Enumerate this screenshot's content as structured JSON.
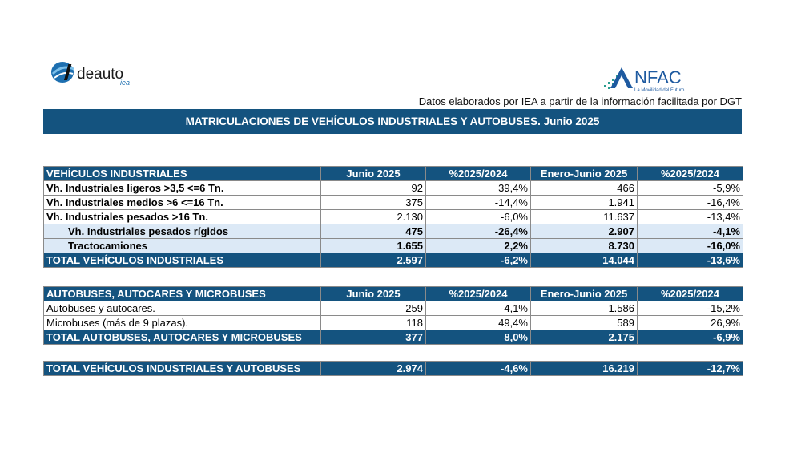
{
  "logos": {
    "left_text": "deauto",
    "left_sub": "iea",
    "right_text": "NFAC",
    "right_sub": "La Movilidad del Futuro"
  },
  "source": "Datos elaborados por IEA a partir de la información facilitada por DGT",
  "title": "MATRICULACIONES DE VEHÍCULOS INDUSTRIALES Y AUTOBUSES.  Junio 2025",
  "industriales": {
    "header": [
      "VEHÍCULOS INDUSTRIALES",
      "Junio 2025",
      "%2025/2024",
      "Enero-Junio 2025",
      "%2025/2024"
    ],
    "rows": [
      [
        "Vh. Industriales ligeros >3,5 <=6 Tn.",
        "92",
        "39,4%",
        "466",
        "-5,9%"
      ],
      [
        "Vh. Industriales medios >6  <=16 Tn.",
        "375",
        "-14,4%",
        "1.941",
        "-16,4%"
      ],
      [
        "Vh. Industriales  pesados >16 Tn.",
        "2.130",
        "-6,0%",
        "11.637",
        "-13,4%"
      ],
      [
        "Vh. Industriales pesados rígidos",
        "475",
        "-26,4%",
        "2.907",
        "-4,1%"
      ],
      [
        "Tractocamiones",
        "1.655",
        "2,2%",
        "8.730",
        "-16,0%"
      ]
    ],
    "total": [
      "TOTAL VEHÍCULOS INDUSTRIALES",
      "2.597",
      "-6,2%",
      "14.044",
      "-13,6%"
    ]
  },
  "autobuses": {
    "header": [
      "AUTOBUSES, AUTOCARES Y MICROBUSES",
      "Junio 2025",
      "%2025/2024",
      "Enero-Junio 2025",
      "%2025/2024"
    ],
    "rows": [
      [
        "Autobuses y autocares.",
        "259",
        "-4,1%",
        "1.586",
        "-15,2%"
      ],
      [
        "Microbuses (más de 9 plazas).",
        "118",
        "49,4%",
        "589",
        "26,9%"
      ]
    ],
    "total": [
      "TOTAL AUTOBUSES, AUTOCARES Y MICROBUSES",
      "377",
      "8,0%",
      "2.175",
      "-6,9%"
    ]
  },
  "grand_total": [
    "TOTAL VEHÍCULOS INDUSTRIALES Y AUTOBUSES",
    "2.974",
    "-4,6%",
    "16.219",
    "-12,7%"
  ],
  "colors": {
    "header_blue": "#14537f",
    "sub_row": "#dce9f6",
    "anfac_blue": "#1e5aa0",
    "anfac_dots": "#2a9d8f"
  }
}
